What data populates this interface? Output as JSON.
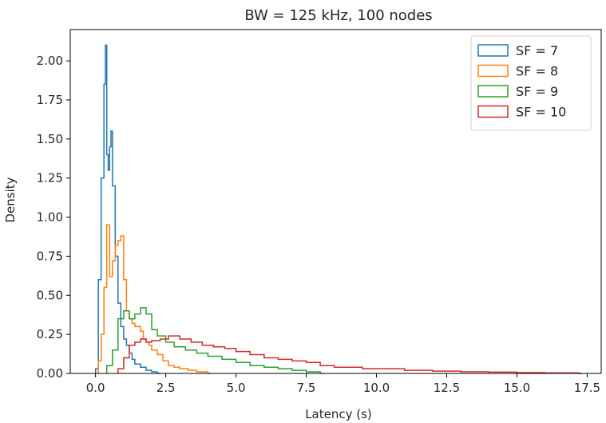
{
  "chart_data": {
    "type": "histogram",
    "title": "BW = 125 kHz, 100 nodes",
    "xlabel": "Latency (s)",
    "ylabel": "Density",
    "xlim": [
      -0.9,
      18.0
    ],
    "ylim": [
      0,
      2.2
    ],
    "xticks": [
      0.0,
      2.5,
      5.0,
      7.5,
      10.0,
      12.5,
      15.0,
      17.5
    ],
    "xtick_labels": [
      "0.0",
      "2.5",
      "5.0",
      "7.5",
      "10.0",
      "12.5",
      "15.0",
      "17.5"
    ],
    "yticks": [
      0.0,
      0.25,
      0.5,
      0.75,
      1.0,
      1.25,
      1.5,
      1.75,
      2.0
    ],
    "ytick_labels": [
      "0.00",
      "0.25",
      "0.50",
      "0.75",
      "1.00",
      "1.25",
      "1.50",
      "1.75",
      "2.00"
    ],
    "legend_position": "top-right",
    "grid": false,
    "series": [
      {
        "name": "SF = 7",
        "color": "#1f77b4",
        "x": [
          0.0,
          0.1,
          0.2,
          0.3,
          0.35,
          0.4,
          0.45,
          0.5,
          0.55,
          0.6,
          0.7,
          0.8,
          0.9,
          1.0,
          1.1,
          1.2,
          1.3,
          1.4,
          1.6,
          1.8,
          2.0,
          2.2
        ],
        "y": [
          0.03,
          0.6,
          1.25,
          1.85,
          2.1,
          1.4,
          1.3,
          1.45,
          1.55,
          1.2,
          0.75,
          0.45,
          0.3,
          0.22,
          0.18,
          0.13,
          0.09,
          0.06,
          0.04,
          0.02,
          0.01,
          0.0
        ]
      },
      {
        "name": "SF = 8",
        "color": "#ff7f0e",
        "x": [
          0.1,
          0.2,
          0.3,
          0.4,
          0.5,
          0.6,
          0.7,
          0.8,
          0.9,
          1.0,
          1.1,
          1.2,
          1.3,
          1.4,
          1.5,
          1.6,
          1.7,
          1.8,
          1.9,
          2.0,
          2.2,
          2.4,
          2.6,
          2.8,
          3.0,
          3.3,
          3.6,
          4.0
        ],
        "y": [
          0.08,
          0.25,
          0.55,
          0.95,
          0.62,
          0.72,
          0.82,
          0.85,
          0.88,
          0.6,
          0.4,
          0.35,
          0.32,
          0.3,
          0.3,
          0.27,
          0.22,
          0.2,
          0.18,
          0.15,
          0.12,
          0.08,
          0.05,
          0.04,
          0.03,
          0.02,
          0.01,
          0.0
        ]
      },
      {
        "name": "SF = 9",
        "color": "#2ca02c",
        "x": [
          0.4,
          0.6,
          0.8,
          1.0,
          1.2,
          1.4,
          1.6,
          1.8,
          2.0,
          2.2,
          2.5,
          2.8,
          3.2,
          3.6,
          4.0,
          4.5,
          5.0,
          5.5,
          6.0,
          6.5,
          7.0,
          7.5,
          8.0
        ],
        "y": [
          0.05,
          0.15,
          0.35,
          0.4,
          0.35,
          0.38,
          0.42,
          0.38,
          0.28,
          0.24,
          0.2,
          0.17,
          0.15,
          0.13,
          0.11,
          0.09,
          0.07,
          0.05,
          0.04,
          0.03,
          0.02,
          0.01,
          0.0
        ]
      },
      {
        "name": "SF = 10",
        "color": "#d62728",
        "x": [
          0.8,
          1.0,
          1.2,
          1.4,
          1.6,
          1.8,
          2.0,
          2.3,
          2.6,
          3.0,
          3.4,
          3.8,
          4.2,
          4.6,
          5.0,
          5.5,
          6.0,
          6.5,
          7.0,
          7.5,
          8.0,
          8.5,
          9.0,
          9.5,
          10.0,
          11.0,
          12.0,
          13.0,
          14.0,
          15.0,
          16.0,
          17.2
        ],
        "y": [
          0.03,
          0.1,
          0.18,
          0.2,
          0.22,
          0.2,
          0.21,
          0.22,
          0.24,
          0.22,
          0.2,
          0.18,
          0.17,
          0.16,
          0.14,
          0.12,
          0.1,
          0.09,
          0.08,
          0.07,
          0.05,
          0.04,
          0.04,
          0.03,
          0.03,
          0.02,
          0.015,
          0.01,
          0.008,
          0.005,
          0.003,
          0.0
        ]
      }
    ]
  }
}
